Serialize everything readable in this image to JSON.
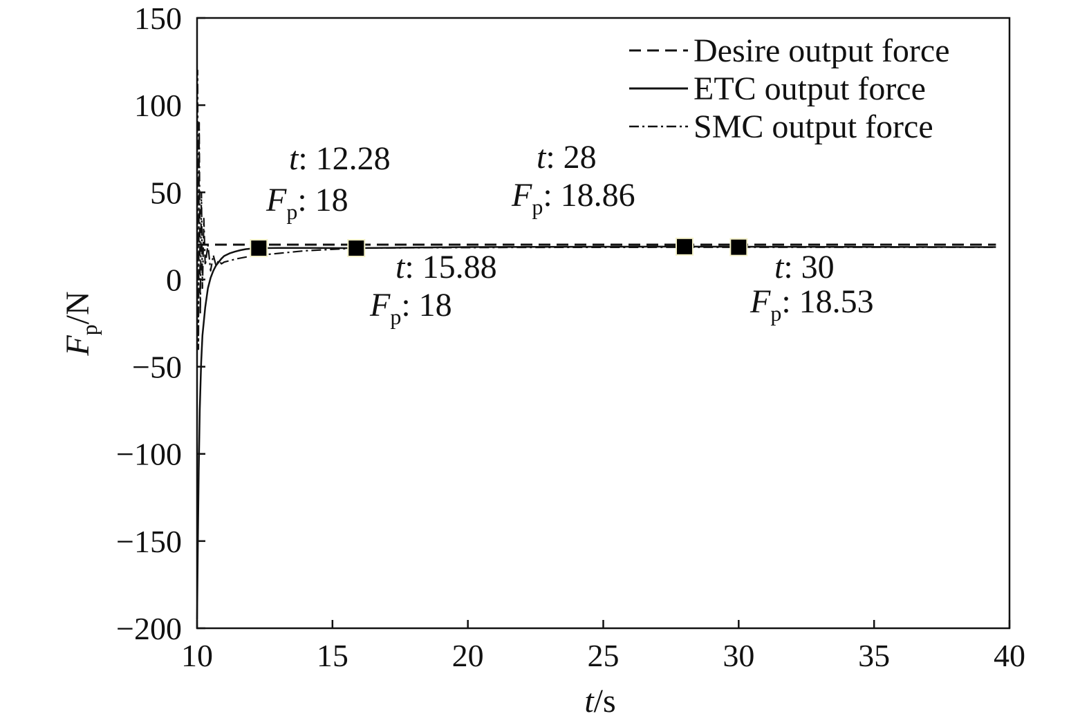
{
  "chart_data": {
    "type": "line",
    "xlabel": {
      "var": "t",
      "unit": "/s"
    },
    "ylabel": {
      "var": "F",
      "sub": "p",
      "unit": "/N"
    },
    "xlim": [
      10,
      40
    ],
    "ylim": [
      -200,
      150
    ],
    "x_ticks": [
      "10",
      "15",
      "20",
      "25",
      "30",
      "35",
      "40"
    ],
    "y_ticks": [
      "150",
      "100",
      "50",
      "0",
      "−50",
      "−100",
      "−150",
      "−200"
    ],
    "x_tick_values": [
      10,
      15,
      20,
      25,
      30,
      35,
      40
    ],
    "y_tick_values": [
      150,
      100,
      50,
      0,
      -50,
      -100,
      -150,
      -200
    ],
    "grid": false,
    "legend_position": "top-right",
    "series": [
      {
        "name": "Desire output force",
        "style": "dashed",
        "x": [
          10,
          39.5
        ],
        "y": [
          20,
          20
        ]
      },
      {
        "name": "ETC output force",
        "style": "solid",
        "x": [
          10.0,
          10.03,
          10.06,
          10.1,
          10.15,
          10.2,
          10.3,
          10.4,
          10.5,
          10.6,
          10.7,
          10.8,
          10.9,
          11.0,
          11.2,
          11.4,
          11.6,
          11.8,
          12.0,
          12.28,
          13.0,
          14.0,
          15.88,
          20.0,
          25.0,
          28.0,
          30.0,
          35.0,
          39.5
        ],
        "y": [
          -195,
          -150,
          -110,
          -75,
          -48,
          -32,
          -16,
          -5,
          1,
          5,
          8,
          10,
          12,
          13.5,
          15,
          16,
          16.8,
          17.4,
          17.7,
          18,
          18.1,
          18.1,
          18,
          18.6,
          18.8,
          18.86,
          18.8,
          18.7,
          18.6
        ]
      },
      {
        "name": "SMC output force",
        "style": "dash-dot",
        "x": [
          10.0,
          10.02,
          10.05,
          10.08,
          10.12,
          10.16,
          10.2,
          10.25,
          10.3,
          10.4,
          10.5,
          10.6,
          10.7,
          10.8,
          10.9,
          11.0,
          11.5,
          12.0,
          13.0,
          14.0,
          15.88,
          18.0,
          22.0,
          28.0,
          30.0,
          35.0,
          39.5
        ],
        "y": [
          10,
          120,
          -40,
          90,
          -20,
          50,
          -5,
          35,
          8,
          20,
          5,
          14,
          8,
          11,
          9,
          10,
          12,
          13.5,
          15,
          16.5,
          18,
          18.2,
          18.4,
          18.5,
          18.53,
          18.5,
          18.5
        ]
      }
    ],
    "markers": [
      {
        "x": 12.28,
        "y": 18
      },
      {
        "x": 15.88,
        "y": 18
      },
      {
        "x": 28,
        "y": 18.86
      },
      {
        "x": 30,
        "y": 18.53
      }
    ],
    "annotations": [
      {
        "t_label": "t",
        "t_value": ": 12.28",
        "f_label": "F",
        "f_sub": "p",
        "f_value": ": 18"
      },
      {
        "t_label": "t",
        "t_value": ": 15.88",
        "f_label": "F",
        "f_sub": "p",
        "f_value": ": 18"
      },
      {
        "t_label": "t",
        "t_value": ": 28",
        "f_label": "F",
        "f_sub": "p",
        "f_value": ": 18.86"
      },
      {
        "t_label": "t",
        "t_value": ": 30",
        "f_label": "F",
        "f_sub": "p",
        "f_value": ": 18.53"
      }
    ]
  }
}
